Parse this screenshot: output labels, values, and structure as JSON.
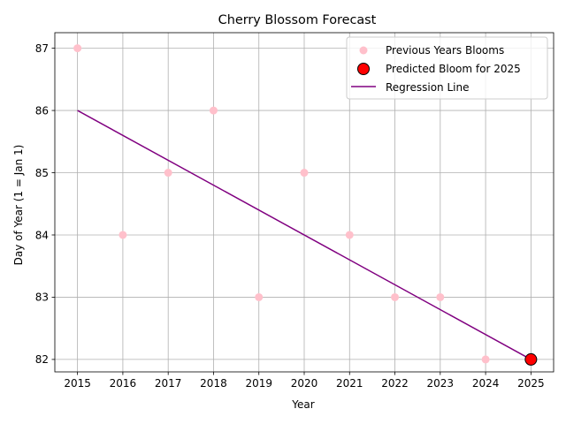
{
  "chart_data": {
    "type": "scatter",
    "title": "Cherry Blossom Forecast",
    "xlabel": "Year",
    "ylabel": "Day of Year (1 = Jan 1)",
    "xlim": [
      2014.5,
      2025.5
    ],
    "ylim": [
      81.8,
      87.25
    ],
    "xticks": [
      "2015",
      "2016",
      "2017",
      "2018",
      "2019",
      "2020",
      "2021",
      "2022",
      "2023",
      "2024",
      "2025"
    ],
    "yticks": [
      "82",
      "83",
      "84",
      "85",
      "86",
      "87"
    ],
    "grid": true,
    "legend_position": "top-right",
    "series": [
      {
        "name": "Previous Years Blooms",
        "kind": "scatter",
        "color": "#ffc0cb",
        "x": [
          2015,
          2016,
          2017,
          2018,
          2019,
          2020,
          2021,
          2022,
          2023,
          2024
        ],
        "y": [
          87,
          84,
          85,
          86,
          83,
          85,
          84,
          83,
          83,
          82
        ]
      },
      {
        "name": "Predicted Bloom for 2025",
        "kind": "scatter",
        "color": "#ff0000",
        "edge_color": "#000000",
        "x": [
          2025
        ],
        "y": [
          82
        ]
      },
      {
        "name": "Regression Line",
        "kind": "line",
        "color": "#800080",
        "x": [
          2015,
          2025
        ],
        "y": [
          86,
          82
        ]
      }
    ]
  }
}
